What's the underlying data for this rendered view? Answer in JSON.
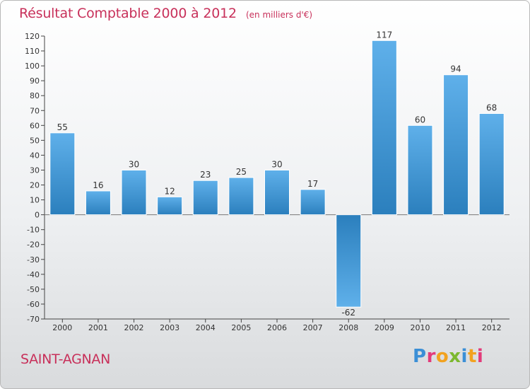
{
  "header": {
    "title": "Résultat Comptable 2000 à 2012",
    "subtitle": "(en milliers d'€)"
  },
  "footer": {
    "commune": "SAINT-AGNAN",
    "logo_letters": [
      "P",
      "r",
      "o",
      "x",
      "i",
      "t",
      "i"
    ]
  },
  "colors": {
    "title": "#c8305a",
    "bar_light": "#5fb0ea",
    "bar_dark": "#2b7fbd",
    "logo": [
      "#3b8fd6",
      "#e33b7a",
      "#f2a21f",
      "#7cb82f",
      "#3b8fd6",
      "#f2a21f",
      "#e33b7a"
    ]
  },
  "chart_data": {
    "type": "bar",
    "title": "Résultat Comptable 2000 à 2012",
    "ylabel": "en milliers d'€",
    "xlabel": "",
    "categories": [
      "2000",
      "2001",
      "2002",
      "2003",
      "2004",
      "2005",
      "2006",
      "2007",
      "2008",
      "2009",
      "2010",
      "2011",
      "2012"
    ],
    "values": [
      55,
      16,
      30,
      12,
      23,
      25,
      30,
      17,
      -62,
      117,
      60,
      94,
      68
    ],
    "ylim": [
      -70,
      120
    ],
    "yticks": [
      120,
      110,
      100,
      90,
      80,
      70,
      60,
      50,
      40,
      30,
      20,
      10,
      0,
      -10,
      -20,
      -30,
      -40,
      -50,
      -60,
      -70
    ],
    "grid": false
  }
}
